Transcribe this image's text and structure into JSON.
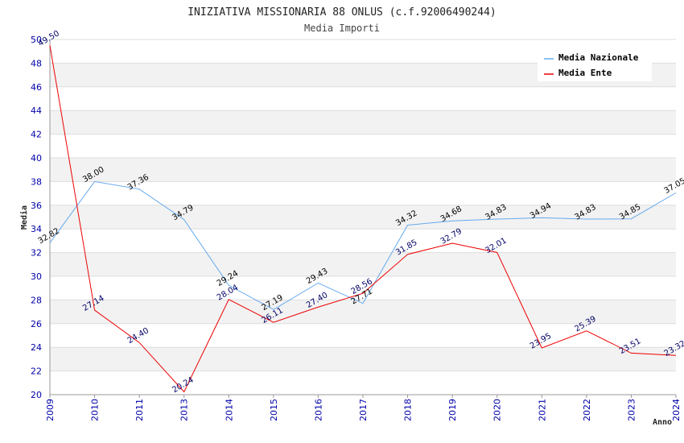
{
  "colors": {
    "band": "#f2f2f2",
    "gridline": "#dddddd",
    "axis": "#999999",
    "tick_text": "#0000aa",
    "series_nazionale": "#66aaee",
    "series_ente": "#ee0000",
    "label_nazionale": "#000000",
    "label_ente": "#000066"
  },
  "chart_data": {
    "type": "line",
    "title": "INIZIATIVA MISSIONARIA 88 ONLUS (c.f.92006490244)",
    "subtitle": "Media Importi",
    "xlabel": "Anno",
    "ylabel": "Media",
    "ylim": [
      20,
      50
    ],
    "ytick_step": 2,
    "grid": true,
    "legend_position": "top-right",
    "categories": [
      "2009",
      "2010",
      "2011",
      "2013",
      "2014",
      "2015",
      "2016",
      "2017",
      "2018",
      "2019",
      "2020",
      "2021",
      "2022",
      "2023",
      "2024"
    ],
    "series": [
      {
        "name": "Media Nazionale",
        "values": [
          32.82,
          38.0,
          37.36,
          34.79,
          29.24,
          27.19,
          29.43,
          27.71,
          34.32,
          34.68,
          34.83,
          34.94,
          34.83,
          34.85,
          37.05
        ],
        "labels": [
          "32.82",
          "38.00",
          "37.36",
          "34.79",
          "29.24",
          "27.19",
          "29.43",
          "27.71",
          "34.32",
          "34.68",
          "34.83",
          "34.94",
          "34.83",
          "34.85",
          "37.05"
        ]
      },
      {
        "name": "Media Ente",
        "values": [
          49.5,
          27.14,
          24.4,
          20.24,
          28.04,
          26.11,
          27.4,
          28.56,
          31.85,
          32.79,
          32.01,
          23.95,
          25.39,
          23.51,
          23.32
        ],
        "labels": [
          "49.50",
          "27.14",
          "24.40",
          "20.24",
          "28.04",
          "26.11",
          "27.40",
          "28.56",
          "31.85",
          "32.79",
          "32.01",
          "23.95",
          "25.39",
          "23.51",
          "23.32"
        ]
      }
    ]
  }
}
